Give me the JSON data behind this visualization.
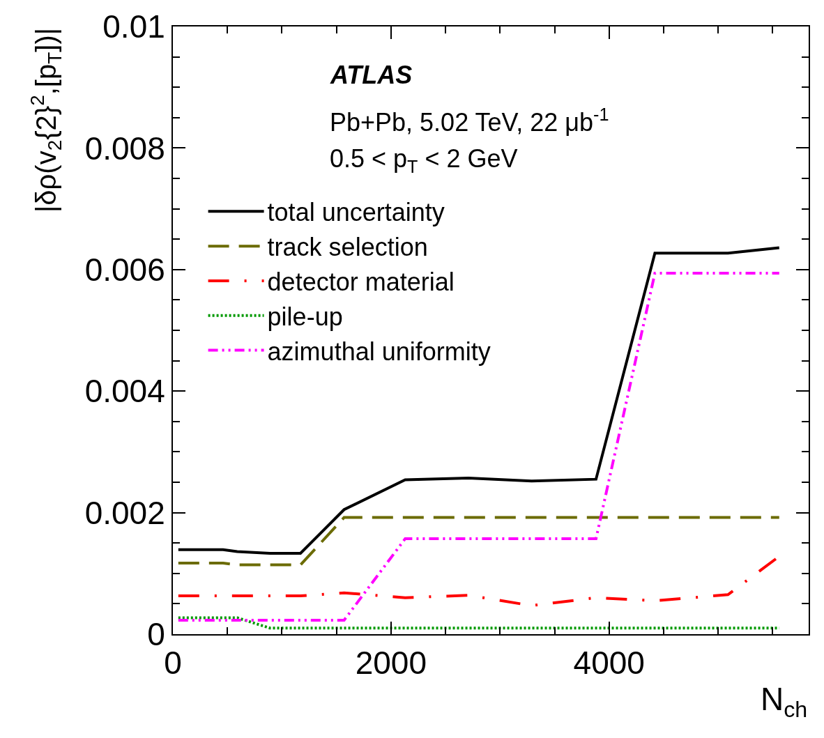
{
  "chart_data": {
    "type": "line",
    "xlabel": "N$_{ch}$",
    "ylabel": "|δρ(v$_{2}${2}$^{2}$,[p$_{T}$])|",
    "annotations": [
      "ATLAS",
      "Pb+Pb, 5.02 TeV, 22 μb$^{-1}$",
      "0.5 < p$_{T}$ < 2 GeV"
    ],
    "x": [
      50,
      460,
      590,
      890,
      1170,
      1570,
      2130,
      2710,
      3290,
      3880,
      4420,
      5090,
      5560
    ],
    "series": [
      {
        "name": "total uncertainty",
        "color": "#000000",
        "line_style": "solid",
        "values": [
          0.00139,
          0.00139,
          0.00136,
          0.00133,
          0.00133,
          0.00205,
          0.00254,
          0.00257,
          0.00252,
          0.00255,
          0.00627,
          0.00627,
          0.00636
        ]
      },
      {
        "name": "track selection",
        "color": "#6b6b00",
        "line_style": "dashed",
        "values": [
          0.00117,
          0.00117,
          0.00114,
          0.00114,
          0.00114,
          0.00192,
          0.00192,
          0.00192,
          0.00192,
          0.00192,
          0.00192,
          0.00192,
          0.00192
        ]
      },
      {
        "name": "detector material",
        "color": "#ff0000",
        "line_style": "dashdot",
        "values": [
          0.00063,
          0.00063,
          0.00063,
          0.00063,
          0.00063,
          0.00068,
          0.0006,
          0.00064,
          0.00047,
          0.0006,
          0.00055,
          0.00065,
          0.00128
        ]
      },
      {
        "name": "pile-up",
        "color": "#009900",
        "line_style": "dotted",
        "values": [
          0.00027,
          0.00027,
          0.00027,
          0.0001,
          0.0001,
          0.0001,
          0.0001,
          0.0001,
          0.0001,
          0.0001,
          0.0001,
          0.0001,
          0.0001
        ]
      },
      {
        "name": "azimuthal uniformity",
        "color": "#ff00ff",
        "line_style": "dashdotdot",
        "values": [
          0.00023,
          0.00023,
          0.00023,
          0.00023,
          0.00023,
          0.00023,
          0.00157,
          0.00157,
          0.00157,
          0.00157,
          0.00594,
          0.00594,
          0.00594
        ]
      }
    ],
    "xlim": [
      0,
      5830
    ],
    "ylim": [
      0,
      0.01
    ],
    "xticks": [
      0,
      2000,
      4000
    ],
    "yticks": [
      0,
      0.002,
      0.004,
      0.006,
      0.008,
      0.01
    ],
    "legend": "top left",
    "marker": "none"
  }
}
